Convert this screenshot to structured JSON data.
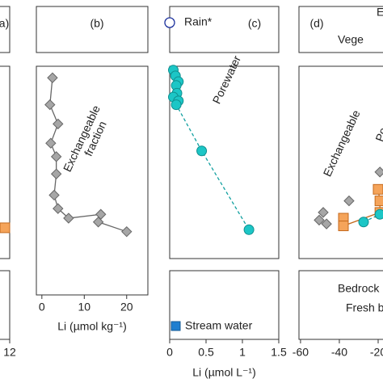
{
  "chart_data": [
    {
      "type": "scatter",
      "panel_label": "a)",
      "xlim": [
        0,
        12
      ],
      "xticks": [
        12
      ],
      "ylim": [
        0,
        100
      ],
      "series": [
        {
          "color": "#f5a45a",
          "marker": "square",
          "line": false,
          "x": [
            11.6
          ],
          "values": [
            84
          ]
        }
      ]
    },
    {
      "type": "scatter",
      "panel_label": "(b)",
      "x_label": "Li (µmol kg⁻¹)",
      "xlim": [
        -1.3,
        25
      ],
      "xticks": [
        0,
        10,
        20
      ],
      "ylim": [
        0,
        100
      ],
      "annotations": [
        "Exchangeable",
        "fraction"
      ],
      "series": [
        {
          "color": "#a6a6a6",
          "marker": "diamond",
          "line": true,
          "x": [
            2.5,
            1.9,
            3.8,
            2.1,
            3.4,
            3.4,
            2.9,
            3.8,
            6.3,
            13.9,
            13.3,
            20.0
          ],
          "values": [
            6,
            20,
            30,
            40,
            47,
            56,
            67,
            74,
            79,
            77,
            81,
            86
          ]
        }
      ]
    },
    {
      "type": "scatter",
      "panel_label": "(c)",
      "x_label": "Li (µmol L⁻¹)",
      "xlim": [
        0,
        1.5
      ],
      "xticks": [
        0,
        0.5,
        1,
        1.5
      ],
      "ylim": [
        0,
        100
      ],
      "rain": {
        "label": "Rain*",
        "x": 0,
        "color": "#1a2f9c"
      },
      "legend": [
        {
          "name": "Stream water",
          "color": "#1f7fd0"
        }
      ],
      "series": [
        {
          "name": "Porewater",
          "color": "#1cc6c6",
          "marker": "circle",
          "line": "dashed",
          "x": [
            0.05,
            0.08,
            0.12,
            0.09,
            0.1,
            0.05,
            0.12,
            0.09,
            0.44,
            1.09
          ],
          "values": [
            2,
            5,
            8,
            10,
            14,
            16,
            18,
            20,
            44,
            85
          ]
        }
      ]
    },
    {
      "type": "scatter",
      "panel_label": "(d)",
      "xlim": [
        -60.8,
        -17.5
      ],
      "xticks": [
        -60,
        -40,
        -20
      ],
      "ylim": [
        0,
        100
      ],
      "top_labels": [
        {
          "text": "Vege",
          "color": "#14a078"
        },
        {
          "text": "E",
          "color": "#222"
        }
      ],
      "bottom_labels": [
        "Bedrock",
        "Fresh b"
      ],
      "series": [
        {
          "name": "Exchangeable",
          "color": "#a6a6a6",
          "marker": "diamond",
          "line": false,
          "x": [
            -35,
            -48.3,
            -46.6,
            -50.4,
            -19.1
          ],
          "values": [
            70,
            76,
            82,
            80,
            55
          ]
        },
        {
          "color": "#f5a45a",
          "marker": "square",
          "line": true,
          "x": [
            -37.9,
            -37.9,
            -19.1,
            -19.1,
            -20
          ],
          "values": [
            79,
            83,
            76,
            70,
            64
          ]
        },
        {
          "name": "Po",
          "color": "#1cc6c6",
          "marker": "circle",
          "line": "dashed",
          "x": [
            -27.5,
            -19.1
          ],
          "values": [
            81,
            77
          ]
        }
      ]
    }
  ]
}
